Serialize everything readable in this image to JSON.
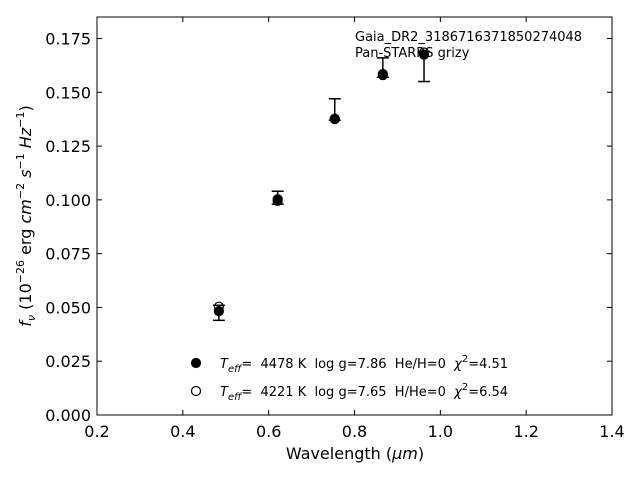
{
  "chart_data": {
    "type": "scatter",
    "xlabel_main": "Wavelength (",
    "xlabel_unit": "μm",
    "xlabel_close": ")",
    "ylabel_pre": "f",
    "ylabel_sub": "ν",
    "ylabel_open": " (10",
    "ylabel_exp1": "−26",
    "ylabel_erg": " erg ",
    "ylabel_cm": "cm",
    "ylabel_exp2": "−2",
    "ylabel_s": " s",
    "ylabel_exp3": "−1",
    "ylabel_hz": " Hz",
    "ylabel_exp4": "−1",
    "ylabel_close": ")",
    "xlim": [
      0.2,
      1.4
    ],
    "ylim": [
      0.0,
      0.185
    ],
    "x_ticks": [
      0.2,
      0.4,
      0.6,
      0.8,
      1.0,
      1.2,
      1.4
    ],
    "x_tick_labels": [
      "0.2",
      "0.4",
      "0.6",
      "0.8",
      "1.0",
      "1.2",
      "1.4"
    ],
    "y_ticks": [
      0.0,
      0.025,
      0.05,
      0.075,
      0.1,
      0.125,
      0.15,
      0.175
    ],
    "y_tick_labels": [
      "0.000",
      "0.025",
      "0.050",
      "0.075",
      "0.100",
      "0.125",
      "0.150",
      "0.175"
    ],
    "annotation_line1": "Gaia_DR2_3186716371850274048",
    "annotation_line2": "Pan-STARRS grizy",
    "observed": {
      "x": [
        0.484,
        0.621,
        0.754,
        0.866,
        0.962
      ],
      "y": [
        0.0485,
        0.1005,
        0.1385,
        0.159,
        0.1675
      ],
      "yerr_low": [
        0.0045,
        0.0025,
        0.0015,
        0.002,
        0.0125
      ],
      "yerr_high": [
        0.0025,
        0.0035,
        0.0085,
        0.007,
        0.0015
      ]
    },
    "series": [
      {
        "marker": "filled",
        "x": [
          0.484,
          0.621,
          0.754,
          0.866,
          0.962
        ],
        "y": [
          0.0483,
          0.1003,
          0.1378,
          0.158,
          0.1675
        ]
      },
      {
        "marker": "open",
        "x": [
          0.484,
          0.621,
          0.754,
          0.866,
          0.962
        ],
        "y": [
          0.0503,
          0.0995,
          0.1375,
          0.1585,
          0.1685
        ]
      }
    ],
    "legend": [
      {
        "marker": "filled",
        "teff_sym": "T",
        "teff_sub": "eff",
        "rest": "=  4478 K  log g=7.86  He/H=0  ",
        "chi_sym": "χ",
        "chi_exp": "2",
        "chi_val": "=4.51"
      },
      {
        "marker": "open",
        "teff_sym": "T",
        "teff_sub": "eff",
        "rest": "=  4221 K  log g=7.65  H/He=0  ",
        "chi_sym": "χ",
        "chi_exp": "2",
        "chi_val": "=6.54"
      }
    ],
    "legend_placement": "lower-center",
    "grid": false
  }
}
